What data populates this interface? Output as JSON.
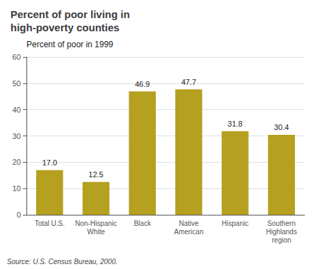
{
  "chart_data": {
    "type": "bar",
    "title": "Percent of poor living in\nhigh-poverty counties",
    "y_label": "Percent of poor in 1999",
    "annotations": [
      "Source: U.S. Census Bureau, 2000."
    ],
    "categories": [
      "Total U.S.",
      "Non-Hispanic\nWhite",
      "Black",
      "Native\nAmerican",
      "Hispanic",
      "Southern\nHighlands\nregion"
    ],
    "values": [
      17.0,
      12.5,
      46.9,
      47.7,
      31.8,
      30.4
    ],
    "value_labels": [
      "17.0",
      "12.5",
      "46.9",
      "47.7",
      "31.8",
      "30.4"
    ],
    "color": "#b5a020",
    "ylim": [
      0,
      60
    ],
    "yticks": [
      0,
      10,
      20,
      30,
      40,
      50,
      60
    ],
    "grid": true,
    "data_labels": true
  }
}
